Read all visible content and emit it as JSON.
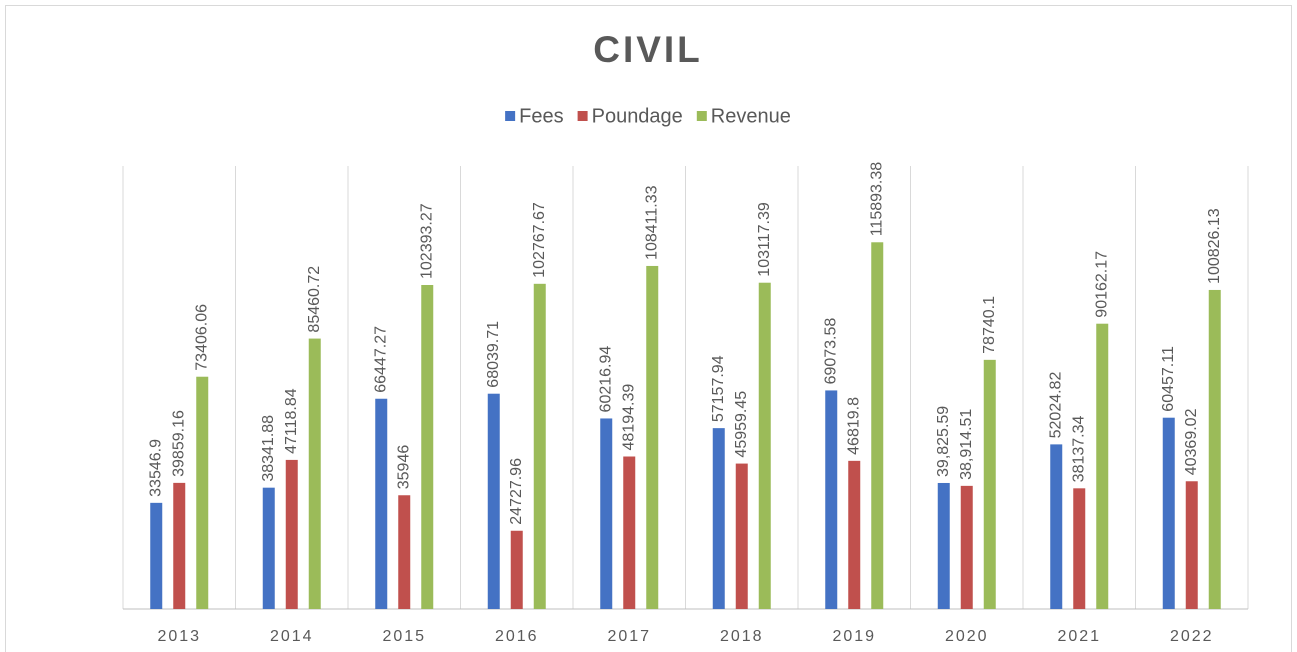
{
  "chart_data": {
    "type": "bar",
    "title": "CIVIL",
    "categories": [
      "2013",
      "2014",
      "2015",
      "2016",
      "2017",
      "2018",
      "2019",
      "2020",
      "2021",
      "2022"
    ],
    "series": [
      {
        "name": "Fees",
        "color": "#4472c4",
        "values": [
          33546.9,
          38341.88,
          66447.27,
          68039.71,
          60216.94,
          57157.94,
          69073.58,
          39825.59,
          52024.82,
          60457.11
        ],
        "value_labels": [
          "33546.9",
          "38341.88",
          "66447.27",
          "68039.71",
          "60216.94",
          "57157.94",
          "69073.58",
          "39,825.59",
          "52024.82",
          "60457.11"
        ]
      },
      {
        "name": "Poundage",
        "color": "#c0504d",
        "values": [
          39859.16,
          47118.84,
          35946,
          24727.96,
          48194.39,
          45959.45,
          46819.8,
          38914.51,
          38137.34,
          40369.02
        ],
        "value_labels": [
          "39859.16",
          "47118.84",
          "35946",
          "24727.96",
          "48194.39",
          "45959.45",
          "46819.8",
          "38,914.51",
          "38137.34",
          "40369.02"
        ]
      },
      {
        "name": "Revenue",
        "color": "#9bbb59",
        "values": [
          73406.06,
          85460.72,
          102393.27,
          102767.67,
          108411.33,
          103117.39,
          115893.38,
          78740.1,
          90162.17,
          100826.13
        ]
      }
    ],
    "ylim": [
      0,
      140000
    ],
    "legend": "top"
  }
}
